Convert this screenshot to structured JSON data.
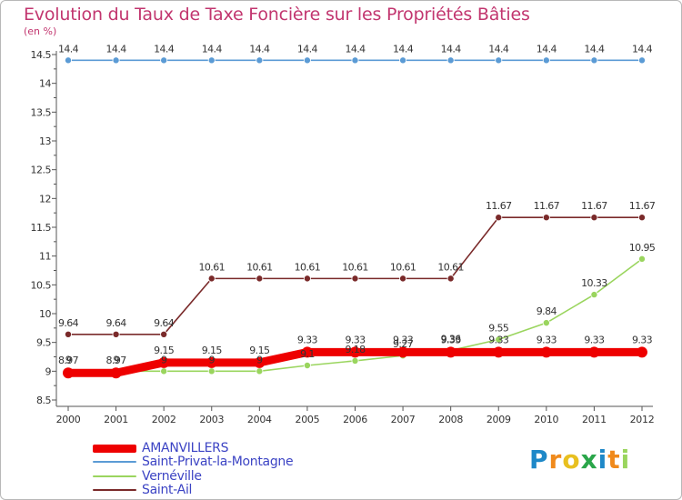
{
  "chart_data": {
    "type": "line",
    "title": "Evolution du Taux de Taxe Foncière sur les Propriétés Bâties",
    "ylabel": "(en %)",
    "xlabel": "",
    "x": [
      "2000",
      "2001",
      "2002",
      "2003",
      "2004",
      "2005",
      "2006",
      "2007",
      "2008",
      "2009",
      "2010",
      "2011",
      "2012"
    ],
    "ylim": [
      8.5,
      14.5
    ],
    "yticks": [
      "8.5",
      "9",
      "9.5",
      "10",
      "10.5",
      "11",
      "11.5",
      "12",
      "12.5",
      "13",
      "13.5",
      "14",
      "14.5"
    ],
    "grid": false,
    "legend_position": "bottom-left",
    "series": [
      {
        "name": "AMANVILLERS",
        "color": "#ee0000",
        "values": [
          8.97,
          8.97,
          9.15,
          9.15,
          9.15,
          9.33,
          9.33,
          9.33,
          9.33,
          9.33,
          9.33,
          9.33,
          9.33
        ],
        "labels": [
          "8.97",
          "8.97",
          "9.15",
          "9.15",
          "9.15",
          "9.33",
          "9.33",
          "9.33",
          "9.33",
          "9.33",
          "9.33",
          "9.33",
          "9.33"
        ]
      },
      {
        "name": "Saint-Privat-la-Montagne",
        "color": "#5b9bd5",
        "values": [
          14.4,
          14.4,
          14.4,
          14.4,
          14.4,
          14.4,
          14.4,
          14.4,
          14.4,
          14.4,
          14.4,
          14.4,
          14.4
        ],
        "labels": [
          "14.4",
          "14.4",
          "14.4",
          "14.4",
          "14.4",
          "14.4",
          "14.4",
          "14.4",
          "14.4",
          "14.4",
          "14.4",
          "14.4",
          "14.4"
        ]
      },
      {
        "name": "Vernéville",
        "color": "#9ad55e",
        "values": [
          9,
          9,
          9,
          9,
          9,
          9.1,
          9.18,
          9.27,
          9.36,
          9.55,
          9.84,
          10.33,
          10.95
        ],
        "labels": [
          "9",
          "9",
          "9",
          "9",
          "9",
          "9.1",
          "9.18",
          "9.27",
          "9.36",
          "9.55",
          "9.84",
          "10.33",
          "10.95"
        ]
      },
      {
        "name": "Saint-Ail",
        "color": "#7a2a2a",
        "values": [
          9.64,
          9.64,
          9.64,
          10.61,
          10.61,
          10.61,
          10.61,
          10.61,
          10.61,
          11.67,
          11.67,
          11.67,
          11.67
        ],
        "labels": [
          "9.64",
          "9.64",
          "9.64",
          "10.61",
          "10.61",
          "10.61",
          "10.61",
          "10.61",
          "10.61",
          "11.67",
          "11.67",
          "11.67",
          "11.67"
        ]
      }
    ]
  },
  "logo": {
    "letters": [
      "P",
      "r",
      "o",
      "x",
      "i",
      "t",
      "i"
    ],
    "colors": [
      "#1e88c8",
      "#f08a1c",
      "#e8c020",
      "#2aa64a",
      "#1e88c8",
      "#f08a1c",
      "#9ad55e"
    ]
  }
}
